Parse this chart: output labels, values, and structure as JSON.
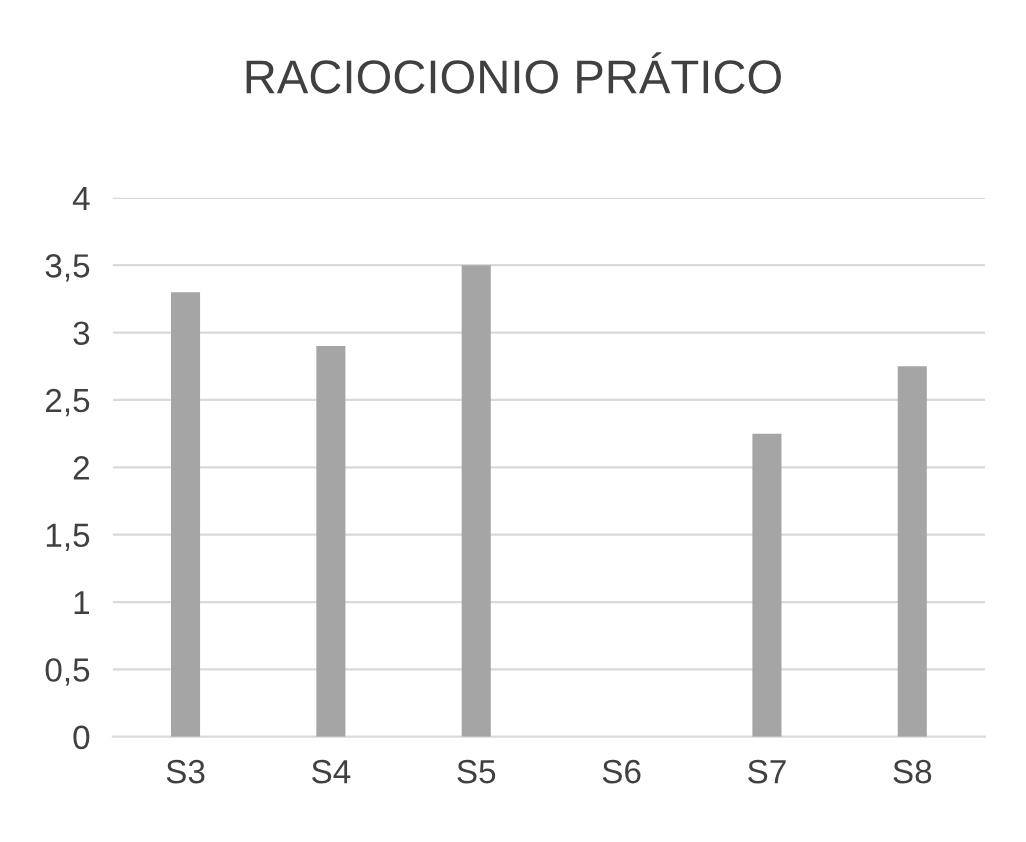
{
  "chart_data": {
    "type": "bar",
    "title": "RACIOCIONIO PRÁTICO",
    "categories": [
      "S3",
      "S4",
      "S5",
      "S6",
      "S7",
      "S8"
    ],
    "values": [
      3.3,
      2.9,
      3.5,
      0,
      2.25,
      2.75
    ],
    "color": "#a5a5a5",
    "ylim": [
      0,
      4
    ],
    "yticks": [
      0,
      {
        "value": 0.5,
        "label": "0,5"
      },
      1,
      {
        "value": 1.5,
        "label": "1,5"
      },
      2,
      {
        "value": 2.5,
        "label": "2,5"
      },
      3,
      {
        "value": 3.5,
        "label": "3,5"
      },
      4
    ],
    "grid": "y"
  }
}
